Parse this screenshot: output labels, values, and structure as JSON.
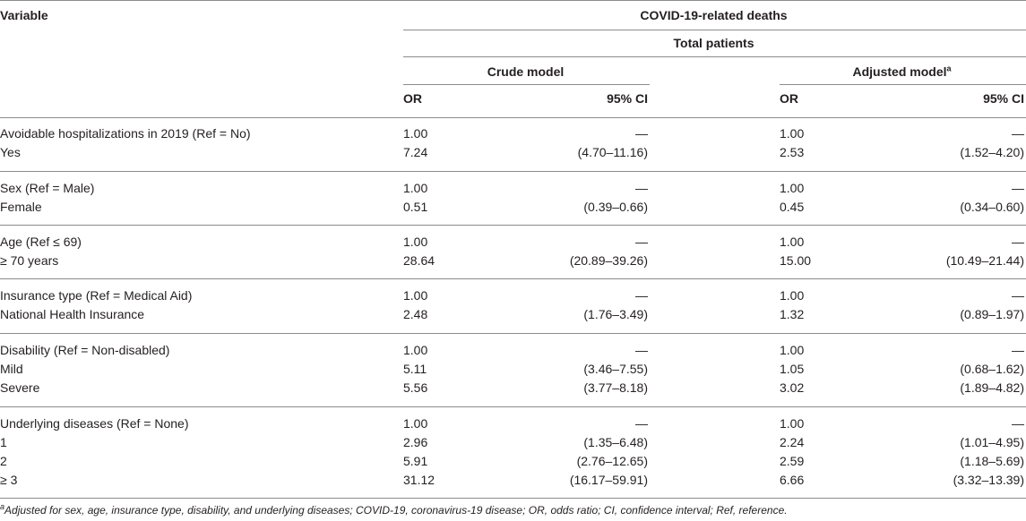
{
  "header": {
    "variable": "Variable",
    "outcome": "COVID-19-related deaths",
    "population": "Total patients",
    "crude_model": "Crude model",
    "adjusted_model": "Adjusted model",
    "adjusted_sup": "a",
    "or": "OR",
    "ci": "95% CI"
  },
  "rows": [
    {
      "label": "Avoidable hospitalizations in 2019 (Ref = No)",
      "crude_or": "1.00",
      "crude_ci": "—",
      "adj_or": "1.00",
      "adj_ci": "—"
    },
    {
      "label": "Yes",
      "crude_or": "7.24",
      "crude_ci": "(4.70–11.16)",
      "adj_or": "2.53",
      "adj_ci": "(1.52–4.20)"
    },
    {
      "label": "Sex (Ref = Male)",
      "crude_or": "1.00",
      "crude_ci": "—",
      "adj_or": "1.00",
      "adj_ci": "—"
    },
    {
      "label": "Female",
      "crude_or": "0.51",
      "crude_ci": "(0.39–0.66)",
      "adj_or": "0.45",
      "adj_ci": "(0.34–0.60)"
    },
    {
      "label": "Age (Ref ≤ 69)",
      "crude_or": "1.00",
      "crude_ci": "—",
      "adj_or": "1.00",
      "adj_ci": "—"
    },
    {
      "label": "≥ 70 years",
      "crude_or": "28.64",
      "crude_ci": "(20.89–39.26)",
      "adj_or": "15.00",
      "adj_ci": "(10.49–21.44)"
    },
    {
      "label": "Insurance type (Ref = Medical Aid)",
      "crude_or": "1.00",
      "crude_ci": "—",
      "adj_or": "1.00",
      "adj_ci": "—"
    },
    {
      "label": "National Health Insurance",
      "crude_or": "2.48",
      "crude_ci": "(1.76–3.49)",
      "adj_or": "1.32",
      "adj_ci": "(0.89–1.97)"
    },
    {
      "label": "Disability (Ref = Non-disabled)",
      "crude_or": "1.00",
      "crude_ci": "—",
      "adj_or": "1.00",
      "adj_ci": "—"
    },
    {
      "label": "Mild",
      "crude_or": "5.11",
      "crude_ci": "(3.46–7.55)",
      "adj_or": "1.05",
      "adj_ci": "(0.68–1.62)"
    },
    {
      "label": "Severe",
      "crude_or": "5.56",
      "crude_ci": "(3.77–8.18)",
      "adj_or": "3.02",
      "adj_ci": "(1.89–4.82)"
    },
    {
      "label": "Underlying diseases (Ref = None)",
      "crude_or": "1.00",
      "crude_ci": "—",
      "adj_or": "1.00",
      "adj_ci": "—"
    },
    {
      "label": "1",
      "crude_or": "2.96",
      "crude_ci": "(1.35–6.48)",
      "adj_or": "2.24",
      "adj_ci": "(1.01–4.95)"
    },
    {
      "label": "2",
      "crude_or": "5.91",
      "crude_ci": "(2.76–12.65)",
      "adj_or": "2.59",
      "adj_ci": "(1.18–5.69)"
    },
    {
      "label": "≥ 3",
      "crude_or": "31.12",
      "crude_ci": "(16.17–59.91)",
      "adj_or": "6.66",
      "adj_ci": "(3.32–13.39)"
    }
  ],
  "footnote_sup": "a",
  "footnote": "Adjusted for sex, age, insurance type, disability, and underlying diseases; COVID-19, coronavirus-19 disease; OR, odds ratio; CI, confidence interval; Ref, reference."
}
